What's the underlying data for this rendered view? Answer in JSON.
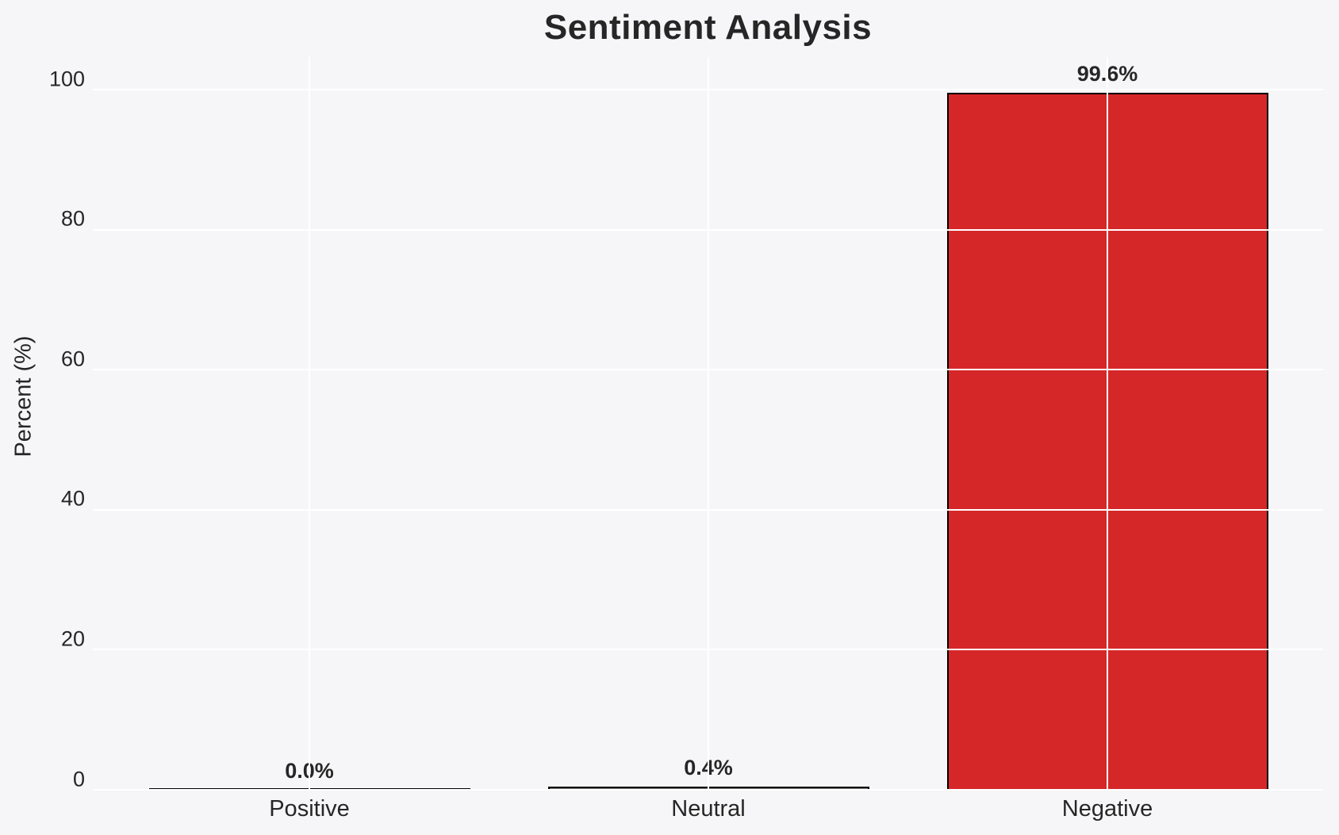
{
  "chart_data": {
    "type": "bar",
    "title": "Sentiment Analysis",
    "ylabel": "Percent (%)",
    "xlabel": "",
    "categories": [
      "Positive",
      "Neutral",
      "Negative"
    ],
    "values": [
      0.0,
      0.4,
      99.6
    ],
    "value_labels": [
      "0.0%",
      "0.4%",
      "99.6%"
    ],
    "yticks": [
      0,
      20,
      40,
      60,
      80,
      100
    ],
    "ylim": [
      0,
      104.6
    ],
    "grid": "on",
    "legend": "none",
    "bar_fill_colors": [
      "#f6f6f8",
      "#808080",
      "#d62728"
    ],
    "bar_edge_color": "#000000"
  },
  "style": {
    "background_color": "#f6f6f8",
    "gridline_color": "#ffffff",
    "text_color": "#262626"
  }
}
